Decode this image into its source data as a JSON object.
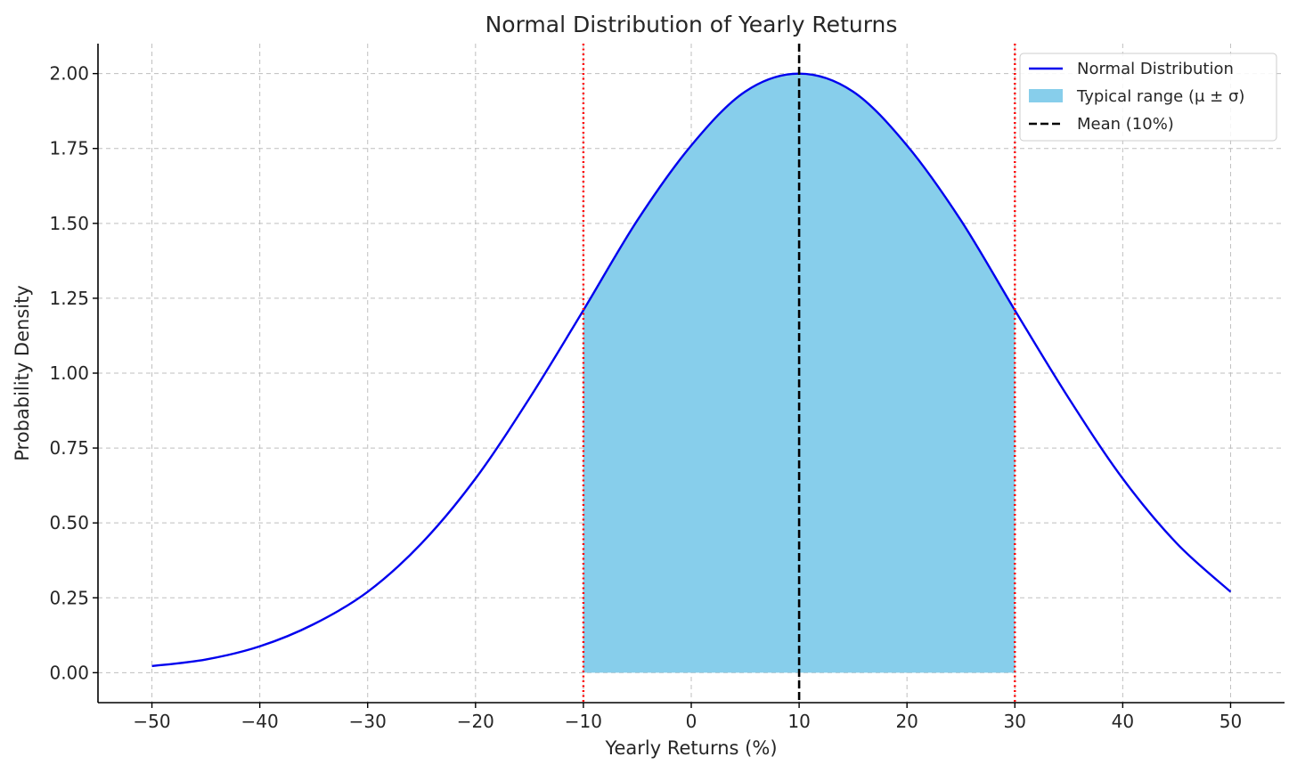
{
  "chart_data": {
    "type": "line",
    "title": "Normal Distribution of Yearly Returns",
    "xlabel": "Yearly Returns (%)",
    "ylabel": "Probability Density",
    "xlim": [
      -55,
      55
    ],
    "ylim": [
      -0.1,
      2.1
    ],
    "xticks": [
      -50,
      -40,
      -30,
      -20,
      -10,
      0,
      10,
      20,
      30,
      40,
      50
    ],
    "xtick_labels": [
      "−50",
      "−40",
      "−30",
      "−20",
      "−10",
      "0",
      "10",
      "20",
      "30",
      "40",
      "50"
    ],
    "yticks": [
      0,
      0.25,
      0.5,
      0.75,
      1.0,
      1.25,
      1.5,
      1.75,
      2.0
    ],
    "ytick_labels": [
      "0.00",
      "0.25",
      "0.50",
      "0.75",
      "1.00",
      "1.25",
      "1.50",
      "1.75",
      "2.00"
    ],
    "grid": true,
    "legend_position": "top-right",
    "series": [
      {
        "name": "Normal Distribution",
        "kind": "line",
        "color": "#0000ee",
        "x": [
          -50,
          -45,
          -40,
          -35,
          -30,
          -25,
          -20,
          -15,
          -10,
          -5,
          0,
          5,
          10,
          15,
          20,
          25,
          30,
          35,
          40,
          45,
          50
        ],
        "y": [
          0.022,
          0.044,
          0.088,
          0.162,
          0.27,
          0.432,
          0.648,
          0.916,
          1.21,
          1.51,
          1.76,
          1.94,
          2.0,
          1.94,
          1.76,
          1.51,
          1.21,
          0.916,
          0.648,
          0.432,
          0.27
        ]
      },
      {
        "name": "Typical range (μ ± σ)",
        "kind": "area",
        "color": "#87ceeb",
        "x_start": -10,
        "x_end": 30
      },
      {
        "name": "Mean (10%)",
        "kind": "vline",
        "color": "#000000",
        "x": 10
      }
    ],
    "reference_lines": [
      {
        "x": -10,
        "color": "#ff0000",
        "style": "dotted"
      },
      {
        "x": 30,
        "color": "#ff0000",
        "style": "dotted"
      }
    ]
  }
}
